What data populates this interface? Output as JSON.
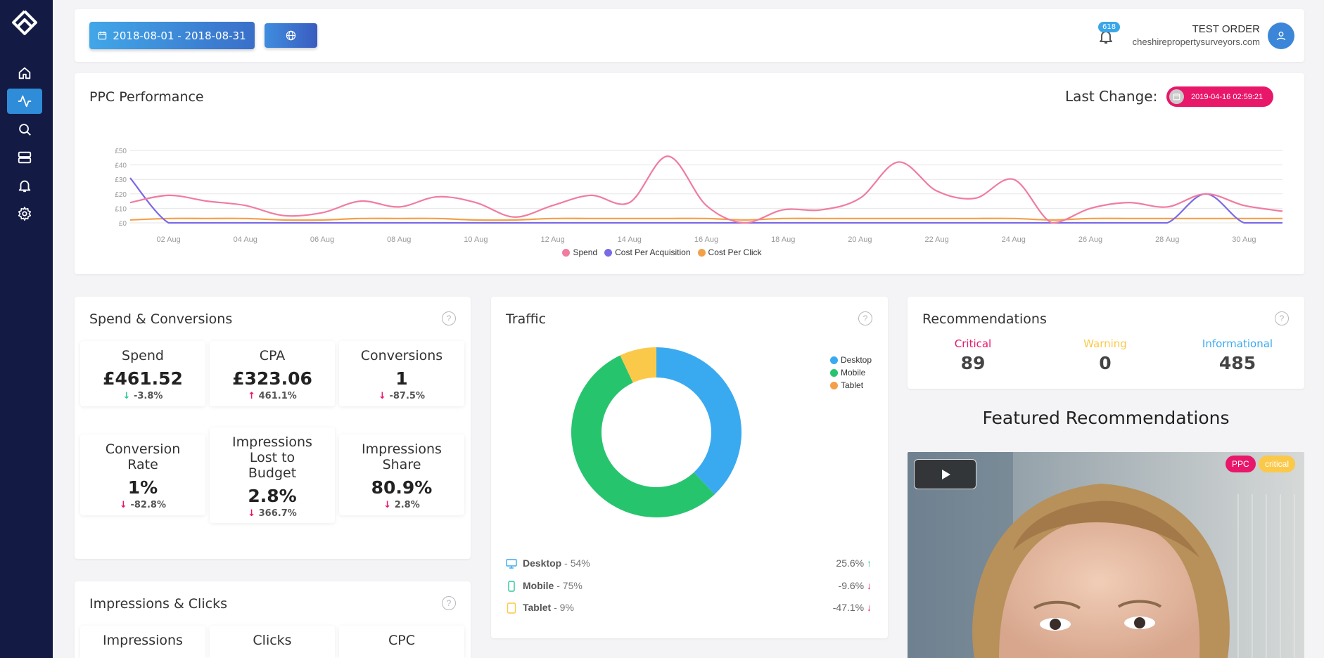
{
  "topbar": {
    "date_range": "2018-08-01 - 2018-08-31",
    "notification_count": "618",
    "user_name": "TEST ORDER",
    "user_site": "cheshirepropertysurveyors.com"
  },
  "sidebar": {
    "items": [
      {
        "icon": "home-icon"
      },
      {
        "icon": "activity-icon",
        "active": true
      },
      {
        "icon": "search-icon"
      },
      {
        "icon": "server-icon"
      },
      {
        "icon": "bell-icon"
      },
      {
        "icon": "gear-icon"
      }
    ]
  },
  "ppc": {
    "title": "PPC Performance",
    "last_change_label": "Last Change:",
    "last_change_value": "2019-04-16 02:59:21"
  },
  "chart_data": {
    "type": "line",
    "title": "",
    "xlabel": "",
    "ylabel": "",
    "ylim": [
      0,
      50
    ],
    "y_ticks": [
      "£0",
      "£10",
      "£20",
      "£30",
      "£40",
      "£50"
    ],
    "x_ticks": [
      "02 Aug",
      "04 Aug",
      "06 Aug",
      "08 Aug",
      "10 Aug",
      "12 Aug",
      "14 Aug",
      "16 Aug",
      "18 Aug",
      "20 Aug",
      "22 Aug",
      "24 Aug",
      "26 Aug",
      "28 Aug",
      "30 Aug"
    ],
    "x": [
      1,
      2,
      3,
      4,
      5,
      6,
      7,
      8,
      9,
      10,
      11,
      12,
      13,
      14,
      15,
      16,
      17,
      18,
      19,
      20,
      21,
      22,
      23,
      24,
      25,
      26,
      27,
      28,
      29,
      30,
      31
    ],
    "legend_position": "bottom",
    "series": [
      {
        "name": "Spend",
        "color": "#f07ca0",
        "values": [
          14,
          19,
          15,
          12,
          5,
          7,
          15,
          11,
          18,
          14,
          4,
          12,
          19,
          14,
          46,
          12,
          0,
          9,
          9,
          17,
          42,
          22,
          17,
          30,
          0,
          10,
          14,
          11,
          20,
          12,
          8
        ]
      },
      {
        "name": "Cost Per Acquisition",
        "color": "#7a6ae6",
        "values": [
          31,
          0,
          0,
          0,
          0,
          0,
          0,
          0,
          0,
          0,
          0,
          0,
          0,
          0,
          0,
          0,
          0,
          0,
          0,
          0,
          0,
          0,
          0,
          0,
          0,
          0,
          0,
          0,
          20,
          0,
          0
        ]
      },
      {
        "name": "Cost Per Click",
        "color": "#f3a04a",
        "values": [
          2,
          3,
          3,
          3,
          2,
          2,
          3,
          3,
          3,
          2,
          2,
          3,
          3,
          3,
          3,
          3,
          2,
          3,
          3,
          3,
          3,
          3,
          3,
          3,
          2,
          3,
          3,
          3,
          3,
          3,
          3
        ]
      }
    ]
  },
  "spend_conversions": {
    "title": "Spend & Conversions",
    "tiles": [
      {
        "label": "Spend",
        "value": "£461.52",
        "change": "-3.8%",
        "dir": "down",
        "good": true
      },
      {
        "label": "CPA",
        "value": "£323.06",
        "change": "461.1%",
        "dir": "up",
        "good": false
      },
      {
        "label": "Conversions",
        "value": "1",
        "change": "-87.5%",
        "dir": "down",
        "good": false
      },
      {
        "label": "Conversion Rate",
        "value": "1%",
        "change": "-82.8%",
        "dir": "down",
        "good": false
      },
      {
        "label": "Impressions Lost to Budget",
        "value": "2.8%",
        "change": "366.7%",
        "dir": "down",
        "good": false
      },
      {
        "label": "Impressions Share",
        "value": "80.9%",
        "change": "2.8%",
        "dir": "down",
        "good": false
      }
    ]
  },
  "impressions_clicks": {
    "title": "Impressions & Clicks",
    "tiles": [
      {
        "label": "Impressions"
      },
      {
        "label": "Clicks"
      },
      {
        "label": "CPC"
      }
    ]
  },
  "traffic": {
    "title": "Traffic",
    "donut": [
      {
        "name": "Desktop",
        "value": 38,
        "color": "#3aaaf0"
      },
      {
        "name": "Mobile",
        "value": 55,
        "color": "#27c46e"
      },
      {
        "name": "Tablet",
        "value": 7,
        "color": "#fbc94a"
      }
    ],
    "legend": [
      "Desktop",
      "Mobile",
      "Tablet"
    ],
    "legend_colors": [
      "#3aaaf0",
      "#27c46e",
      "#f3a04a"
    ],
    "rows": [
      {
        "name": "Desktop",
        "pct": "54%",
        "change": "25.6%",
        "dir": "up",
        "icon": "desktop-icon",
        "color": "#3aaaf0"
      },
      {
        "name": "Mobile",
        "pct": "75%",
        "change": "-9.6%",
        "dir": "down",
        "icon": "mobile-icon",
        "color": "#2ec69a"
      },
      {
        "name": "Tablet",
        "pct": "9%",
        "change": "-47.1%",
        "dir": "down",
        "icon": "tablet-icon",
        "color": "#fbc94a"
      }
    ]
  },
  "recommendations": {
    "title": "Recommendations",
    "critical_label": "Critical",
    "critical_value": "89",
    "warning_label": "Warning",
    "warning_value": "0",
    "info_label": "Informational",
    "info_value": "485",
    "colors": {
      "critical": "#e8176a",
      "warning": "#fbc94a",
      "info": "#3aaaf0"
    }
  },
  "featured": {
    "title": "Featured Recommendations",
    "tag_ppc": "PPC",
    "tag_critical": "critical"
  }
}
